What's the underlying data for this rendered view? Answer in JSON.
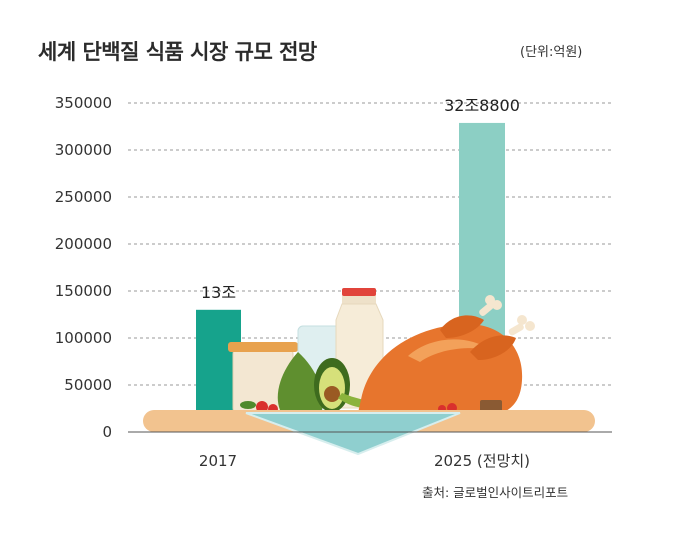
{
  "header": {
    "title": "세계 단백질 식품 시장 규모 전망",
    "unit": "(단위:억원)"
  },
  "footer": {
    "source": "출처: 글로벌인사이트리포트"
  },
  "colors": {
    "bar_2017": "#16a38c",
    "bar_2025": "#8ccfc4",
    "grid": "#9a9a9a",
    "axis_text": "#333333"
  },
  "chart_data": {
    "type": "bar",
    "title": "세계 단백질 식품 시장 규모 전망",
    "unit_label": "(단위:억원)",
    "categories": [
      "2017",
      "2025 (전망치)"
    ],
    "values": [
      130000,
      328800
    ],
    "data_labels": [
      "13조",
      "32조8800"
    ],
    "yticks": [
      "0",
      "50000",
      "100000",
      "150000",
      "200000",
      "250000",
      "300000",
      "350000"
    ],
    "ylim": [
      0,
      350000
    ],
    "grid": true,
    "xlabel": "",
    "ylabel": ""
  }
}
